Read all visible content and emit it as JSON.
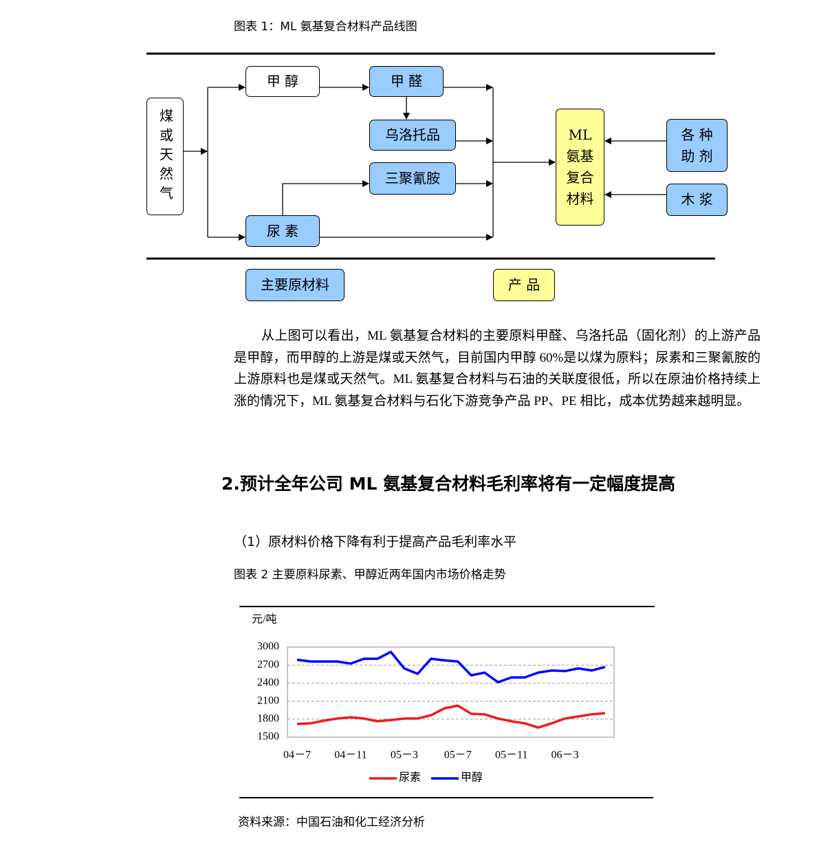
{
  "figure1": {
    "caption": "图表 1：ML 氨基复合材料产品线图",
    "nodes": [
      {
        "label": "煤或天然气"
      },
      {
        "label": "甲 醇"
      },
      {
        "label": "甲 醛"
      },
      {
        "label": "乌洛托品"
      },
      {
        "label": "三聚氰胺"
      },
      {
        "label": "尿 素"
      },
      {
        "lines": [
          "ML",
          "氨基",
          "复合",
          "材料"
        ]
      },
      {
        "lines": [
          "各 种",
          "助 剂"
        ]
      },
      {
        "label": "木 浆"
      }
    ],
    "legend": [
      "主要原材料",
      "产 品"
    ]
  },
  "paragraph": "从上图可以看出，ML 氨基复合材料的主要原料甲醛、乌洛托品（固化剂）的上游产品是甲醇，而甲醇的上游是煤或天然气，目前国内甲醇 60%是以煤为原料；尿素和三聚氰胺的上游原料也是煤或天然气。ML 氨基复合材料与石油的关联度很低，所以在原油价格持续上涨的情况下，ML 氨基复合材料与石化下游竞争产品 PP、PE 相比，成本优势越来越明显。",
  "heading": "2.预计全年公司 ML 氨基复合材料毛利率将有一定幅度提高",
  "subheading": "（1）原材料价格下降有利于提高产品毛利率水平",
  "figure2": {
    "caption": "图表 2 主要原料尿素、甲醇近两年国内市场价格走势",
    "source": "资料来源：中国石油和化工经济分析"
  },
  "chart_data": {
    "type": "line",
    "y_label": "元/吨",
    "categories": [
      "04－7",
      null,
      null,
      null,
      "04－11",
      null,
      null,
      null,
      "05－3",
      null,
      null,
      null,
      "05－7",
      null,
      null,
      null,
      "05－11",
      null,
      null,
      null,
      "06－3",
      null,
      null,
      null
    ],
    "series": [
      {
        "name": "尿素",
        "color": "#ee1c1c",
        "values": [
          1720,
          1730,
          1775,
          1810,
          1830,
          1810,
          1765,
          1785,
          1810,
          1810,
          1865,
          1980,
          2025,
          1890,
          1880,
          1810,
          1765,
          1730,
          1660,
          1730,
          1810,
          1845,
          1880,
          1900
        ]
      },
      {
        "name": "甲醇",
        "color": "#0000ff",
        "values": [
          2790,
          2760,
          2760,
          2760,
          2725,
          2805,
          2805,
          2920,
          2645,
          2555,
          2805,
          2780,
          2760,
          2530,
          2575,
          2415,
          2495,
          2495,
          2575,
          2610,
          2600,
          2645,
          2610,
          2670
        ]
      }
    ],
    "ylim": [
      1500,
      3000
    ],
    "yticks": [
      1500,
      1800,
      2100,
      2400,
      2700,
      3000
    ],
    "grid": true,
    "legend": "bottom"
  }
}
